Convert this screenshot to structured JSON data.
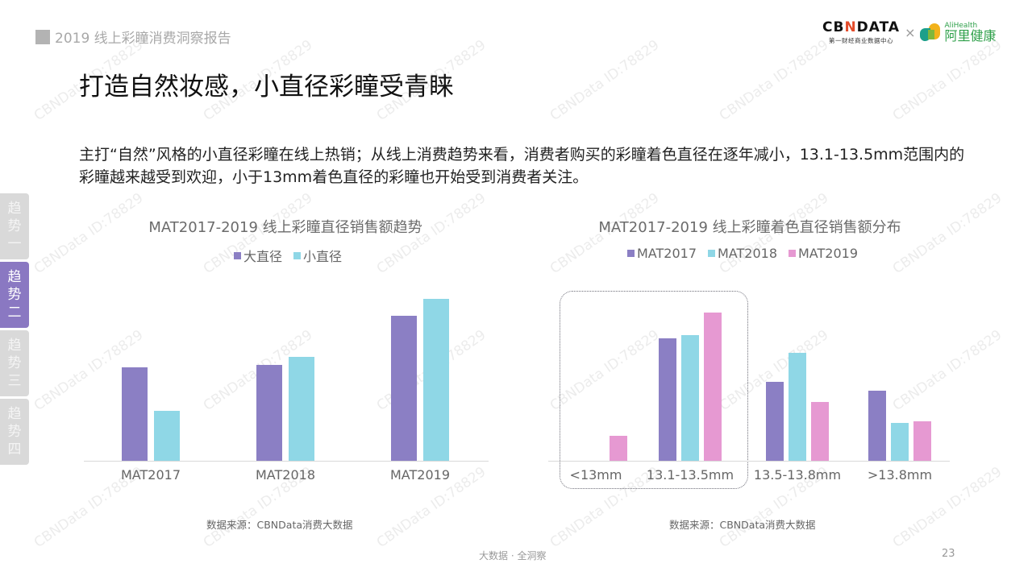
{
  "header": {
    "report_title": "2019 线上彩瞳消费洞察报告"
  },
  "logos": {
    "cbndata_brand": "CBNDATA",
    "cbndata_sub": "第一财经商业数据中心",
    "times": "×",
    "alihealth_en": "AliHealth",
    "alihealth_cn": "阿里健康"
  },
  "slide": {
    "title": "打造自然妆感，小直径彩瞳受青睐",
    "description": "主打“自然”风格的小直径彩瞳在线上热销；从线上消费趋势来看，消费者购买的彩瞳着色直径在逐年减小，13.1-13.5mm范围内的彩瞳越来越受到欢迎，小于13mm着色直径的彩瞳也开始受到消费者关注。"
  },
  "side_tabs": [
    {
      "label": "趋势一",
      "chars": [
        "趋",
        "势",
        "一"
      ],
      "active": false
    },
    {
      "label": "趋势二",
      "chars": [
        "趋",
        "势",
        "二"
      ],
      "active": true
    },
    {
      "label": "趋势三",
      "chars": [
        "趋",
        "势",
        "三"
      ],
      "active": false
    },
    {
      "label": "趋势四",
      "chars": [
        "趋",
        "势",
        "四"
      ],
      "active": false
    }
  ],
  "colors": {
    "purple": "#8b7fc4",
    "cyan": "#8fd7e6",
    "pink": "#e699d2",
    "active_tab": "#8a78c2",
    "inactive_tab": "#d9d9d9"
  },
  "chart_data": [
    {
      "type": "bar",
      "title": "MAT2017-2019 线上彩瞳直径销售额趋势",
      "xlabel": "",
      "ylabel": "",
      "categories": [
        "MAT2017",
        "MAT2018",
        "MAT2019"
      ],
      "series": [
        {
          "name": "大直径",
          "color": "#8b7fc4",
          "values": [
            116,
            119,
            180
          ]
        },
        {
          "name": "小直径",
          "color": "#8fd7e6",
          "values": [
            62,
            129,
            201
          ]
        }
      ],
      "value_units": "relative bar height (no axis shown)",
      "ylim": [
        0,
        210
      ],
      "grid": false,
      "legend_position": "top",
      "source": "数据来源：CBNData消费大数据"
    },
    {
      "type": "bar",
      "title": "MAT2017-2019 线上彩瞳着色直径销售额分布",
      "xlabel": "",
      "ylabel": "",
      "categories": [
        "<13mm",
        "13.1-13.5mm",
        "13.5-13.8mm",
        ">13.8mm"
      ],
      "series": [
        {
          "name": "MAT2017",
          "color": "#8b7fc4",
          "values": [
            0,
            152,
            98,
            87
          ]
        },
        {
          "name": "MAT2018",
          "color": "#8fd7e6",
          "values": [
            0,
            156,
            134,
            47
          ]
        },
        {
          "name": "MAT2019",
          "color": "#e699d2",
          "values": [
            31,
            184,
            73,
            49
          ]
        }
      ],
      "value_units": "relative bar height (no axis shown)",
      "ylim": [
        0,
        210
      ],
      "grid": false,
      "legend_position": "top",
      "annotation": "dotted rounded box highlighting <13mm and 13.1-13.5mm",
      "source": "数据来源：CBNData消费大数据"
    }
  ],
  "footer": {
    "slogan": "大数据 · 全洞察",
    "page_number": "23"
  },
  "watermark": "CBNData ID:78829"
}
